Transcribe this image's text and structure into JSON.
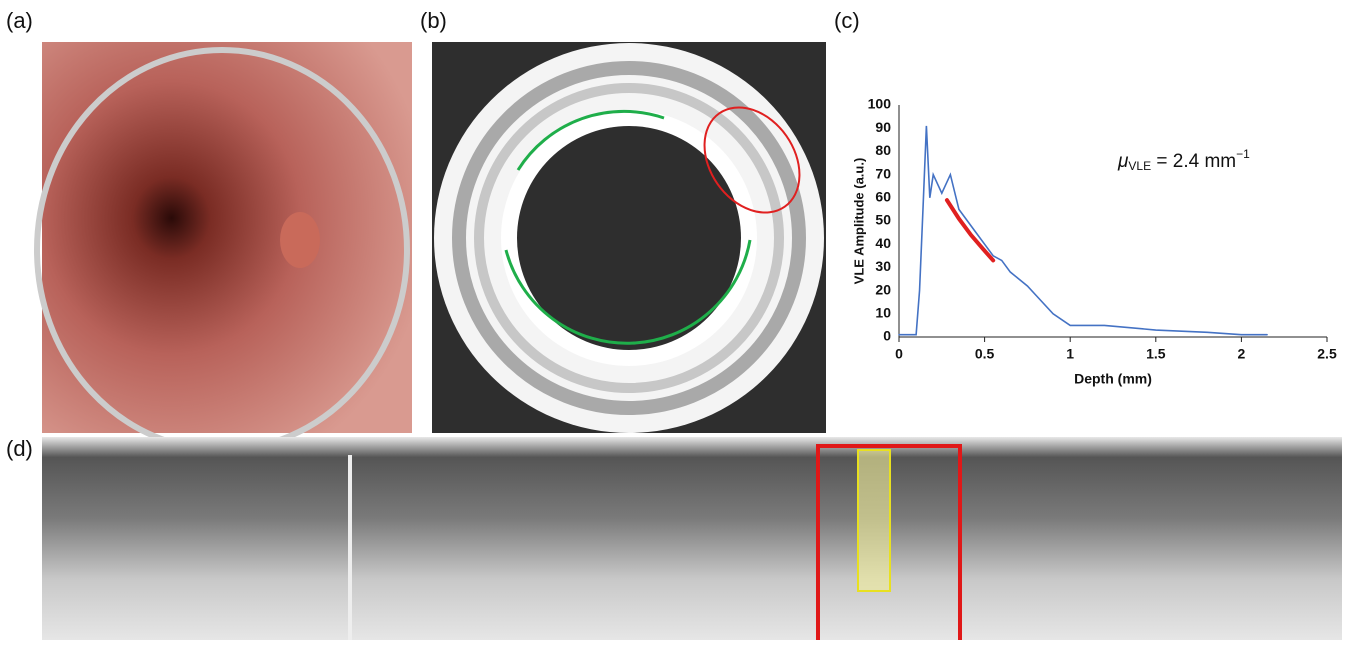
{
  "panel_labels": [
    "(a)",
    "(b)",
    "(c)",
    "(d)"
  ],
  "chart_data": {
    "type": "line",
    "x_label": "Depth (mm)",
    "y_label": "VLE Amplitude (a.u.)",
    "annotation": {
      "symbol": "μ",
      "subscript": "VLE",
      "text": " = 2.4 mm",
      "superscript": "−1"
    },
    "xlim": [
      0,
      2.5
    ],
    "xticks": [
      0,
      0.5,
      1,
      1.5,
      2,
      2.5
    ],
    "ylim": [
      0,
      100
    ],
    "yticks": [
      0,
      10,
      20,
      30,
      40,
      50,
      60,
      70,
      80,
      90,
      100
    ],
    "series": [
      {
        "color": "#4472c4",
        "x": [
          0,
          0.1,
          0.12,
          0.14,
          0.16,
          0.18,
          0.2,
          0.25,
          0.3,
          0.35,
          0.4,
          0.45,
          0.5,
          0.55,
          0.6,
          0.65,
          0.7,
          0.75,
          0.8,
          0.9,
          1.0,
          1.2,
          1.5,
          1.8,
          2.0,
          2.15
        ],
        "values": [
          1,
          1,
          20,
          55,
          91,
          60,
          70,
          62,
          70,
          55,
          50,
          45,
          40,
          35,
          33,
          28,
          25,
          22,
          18,
          10,
          5,
          5,
          3,
          2,
          1,
          1
        ]
      },
      {
        "color": "#e02020",
        "x": [
          0.28,
          0.35,
          0.42,
          0.49,
          0.55
        ],
        "values": [
          59,
          51,
          44,
          38,
          33
        ]
      }
    ]
  }
}
